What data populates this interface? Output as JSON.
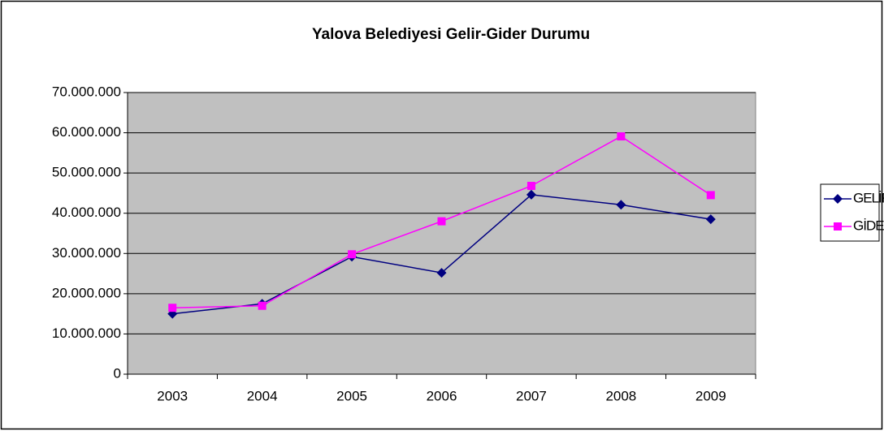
{
  "chart_data": {
    "type": "line",
    "title": "Yalova Belediyesi Gelir-Gider Durumu",
    "categories": [
      "2003",
      "2004",
      "2005",
      "2006",
      "2007",
      "2008",
      "2009"
    ],
    "series": [
      {
        "name": "GELİR",
        "color": "#000080",
        "marker": "diamond",
        "values": [
          15000000,
          17500000,
          29200000,
          25200000,
          44600000,
          42100000,
          38500000
        ]
      },
      {
        "name": "GİDER",
        "color": "#ff00ff",
        "marker": "square",
        "values": [
          16500000,
          17000000,
          29800000,
          38000000,
          46800000,
          59100000,
          44500000
        ]
      }
    ],
    "ylim": [
      0,
      70000000
    ],
    "yticks": [
      0,
      {
        "value": 10000000,
        "label": "10.000.000"
      },
      {
        "value": 20000000,
        "label": "20.000.000"
      },
      {
        "value": 30000000,
        "label": "30.000.000"
      },
      {
        "value": 40000000,
        "label": "40.000.000"
      },
      {
        "value": 50000000,
        "label": "50.000.000"
      },
      {
        "value": 60000000,
        "label": "60.000.000"
      },
      {
        "value": 70000000,
        "label": "70.000.000"
      }
    ],
    "grid": true,
    "plot_background": "#c0c0c0",
    "legend": "right"
  }
}
